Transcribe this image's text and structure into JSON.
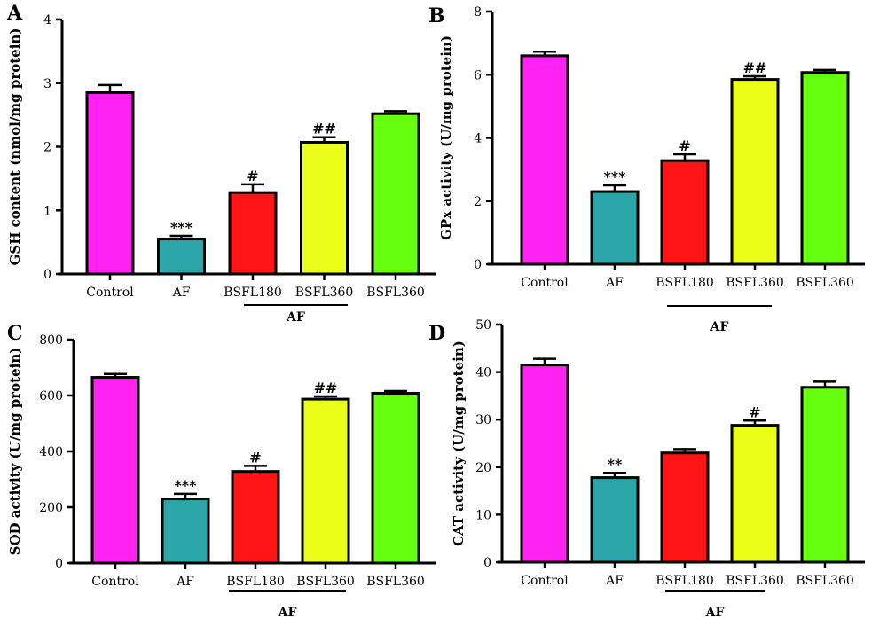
{
  "colors": [
    "#ff22f0",
    "#2aa5a8",
    "#ff1515",
    "#eaff1a",
    "#66ff10"
  ],
  "chart_data": [
    {
      "panel": "A",
      "type": "bar",
      "ylabel": "GSH content (nmol/mg protein)",
      "ylim": [
        0,
        4
      ],
      "yticks": [
        "0",
        "1",
        "2",
        "3",
        "4"
      ],
      "categories": [
        "Control",
        "AF",
        "BSFL180",
        "BSFL360",
        "BSFL360"
      ],
      "values": [
        2.85,
        0.55,
        1.28,
        2.07,
        2.52
      ],
      "errors": [
        0.12,
        0.05,
        0.13,
        0.08,
        0.04
      ],
      "annotations": [
        "",
        "***",
        "#",
        "##",
        ""
      ],
      "group_label": "AF"
    },
    {
      "panel": "B",
      "type": "bar",
      "ylabel": "GPx activity (U/mg protein)",
      "ylim": [
        0,
        8
      ],
      "yticks": [
        "0",
        "2",
        "4",
        "6",
        "8"
      ],
      "categories": [
        "Control",
        "AF",
        "BSFL180",
        "BSFL360",
        "BSFL360"
      ],
      "values": [
        6.6,
        2.3,
        3.28,
        5.85,
        6.07
      ],
      "errors": [
        0.13,
        0.2,
        0.2,
        0.1,
        0.08
      ],
      "annotations": [
        "",
        "***",
        "#",
        "##",
        ""
      ],
      "group_label": "AF"
    },
    {
      "panel": "C",
      "type": "bar",
      "ylabel": "SOD activity (U/mg protein)",
      "ylim": [
        0,
        800
      ],
      "yticks": [
        "0",
        "200",
        "400",
        "600",
        "800"
      ],
      "categories": [
        "Control",
        "AF",
        "BSFL180",
        "BSFL360",
        "BSFL360"
      ],
      "values": [
        665,
        230,
        328,
        587,
        608
      ],
      "errors": [
        12,
        18,
        20,
        10,
        8
      ],
      "annotations": [
        "",
        "***",
        "#",
        "##",
        ""
      ],
      "group_label": "AF"
    },
    {
      "panel": "D",
      "type": "bar",
      "ylabel": "CAT activity (U/mg protein)",
      "ylim": [
        0,
        50
      ],
      "yticks": [
        "0",
        "10",
        "20",
        "30",
        "40",
        "50"
      ],
      "categories": [
        "Control",
        "AF",
        "BSFL180",
        "BSFL360",
        "BSFL360"
      ],
      "values": [
        41.5,
        17.8,
        23,
        28.8,
        36.8
      ],
      "errors": [
        1.3,
        1,
        0.8,
        1,
        1.2
      ],
      "annotations": [
        "",
        "**",
        "",
        "#",
        ""
      ],
      "group_label": "AF"
    }
  ]
}
